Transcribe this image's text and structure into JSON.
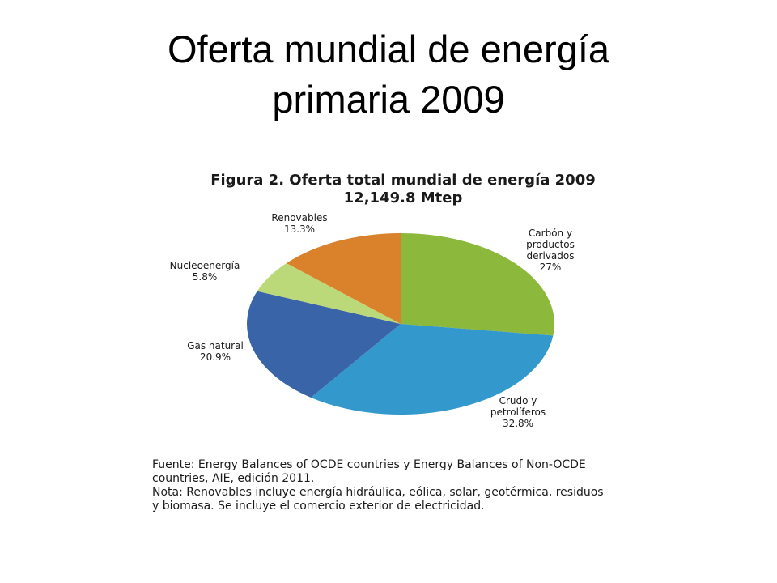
{
  "slide": {
    "title_line1": "Oferta mundial de energía",
    "title_line2": "primaria 2009"
  },
  "figure": {
    "title_line1": "Figura 2. Oferta total mundial de energía 2009",
    "title_line2": "12,149.8 Mtep"
  },
  "chart_data": {
    "type": "pie",
    "title": "Figura 2. Oferta total mundial de energía 2009",
    "subtitle": "12,149.8 Mtep",
    "slices": [
      {
        "label_lines": [
          "Carbón y",
          "productos",
          "derivados"
        ],
        "pct_label": "27%",
        "value": 27.0,
        "color": "#8cb93c"
      },
      {
        "label_lines": [
          "Crudo y",
          "petrolíferos"
        ],
        "pct_label": "32.8%",
        "value": 32.8,
        "color": "#3399cc"
      },
      {
        "label_lines": [
          "Gas natural"
        ],
        "pct_label": "20.9%",
        "value": 20.9,
        "color": "#3a64a8"
      },
      {
        "label_lines": [
          "Nucleoenergía"
        ],
        "pct_label": "5.8%",
        "value": 5.8,
        "color": "#bcd97a"
      },
      {
        "label_lines": [
          "Renovables"
        ],
        "pct_label": "13.3%",
        "value": 13.3,
        "color": "#d9822b"
      }
    ]
  },
  "notes": {
    "line1": "Fuente: Energy Balances of OCDE countries y Energy Balances of Non-OCDE",
    "line2": "countries, AIE, edición 2011.",
    "line3": "Nota: Renovables incluye energía hidráulica, eólica, solar, geotérmica, residuos",
    "line4": "y biomasa. Se incluye el comercio exterior de electricidad."
  }
}
